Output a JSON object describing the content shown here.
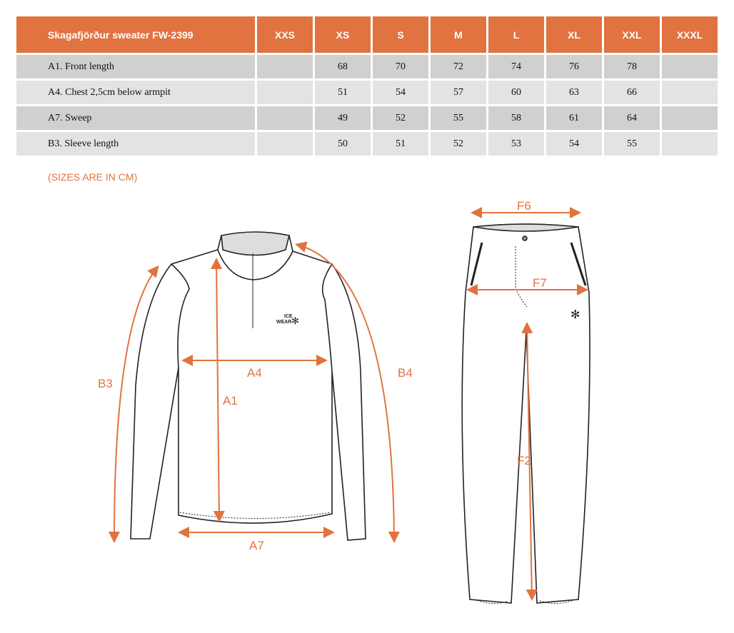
{
  "table": {
    "title": "Skagafjörður sweater FW-2399",
    "sizes": [
      "XXS",
      "XS",
      "S",
      "M",
      "L",
      "XL",
      "XXL",
      "XXXL"
    ],
    "rows": [
      {
        "label": "A1. Front length",
        "values": [
          "",
          "68",
          "70",
          "72",
          "74",
          "76",
          "78",
          ""
        ]
      },
      {
        "label": "A4. Chest 2,5cm below armpit",
        "values": [
          "",
          "51",
          "54",
          "57",
          "60",
          "63",
          "66",
          ""
        ]
      },
      {
        "label": "A7. Sweep",
        "values": [
          "",
          "49",
          "52",
          "55",
          "58",
          "61",
          "64",
          ""
        ]
      },
      {
        "label": "B3. Sleeve length",
        "values": [
          "",
          "50",
          "51",
          "52",
          "53",
          "54",
          "55",
          ""
        ]
      }
    ]
  },
  "note": "(SIZES ARE IN CM)",
  "diagram": {
    "accent_color": "#e0733f",
    "brand_logo": "ICE WEAR",
    "sweater_labels": {
      "a1": "A1",
      "a4": "A4",
      "a7": "A7",
      "b3": "B3",
      "b4": "B4"
    },
    "pants_labels": {
      "f6": "F6",
      "f7": "F7",
      "f2": "F2"
    }
  }
}
